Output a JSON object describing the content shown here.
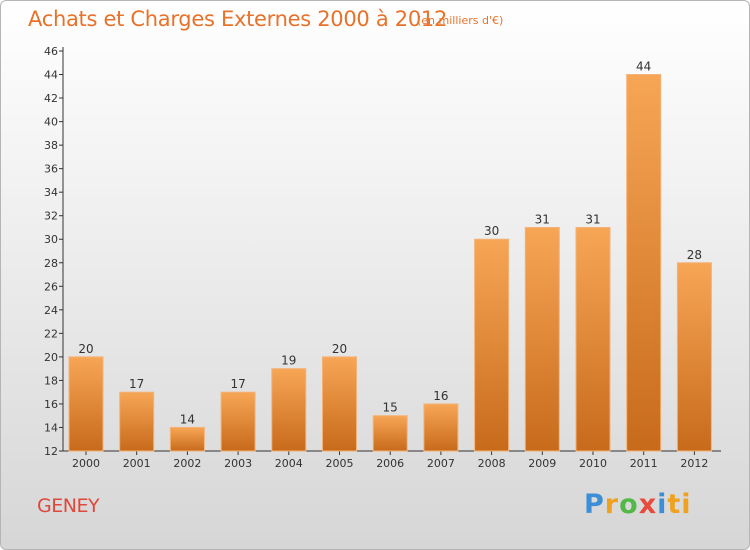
{
  "page": {
    "title": "Achats et Charges Externes 2000 à 2012",
    "unit_note": "(en milliers d'€)",
    "place": "GENEY",
    "brand": "Proxiti",
    "brand_letters": [
      "P",
      "r",
      "o",
      "x",
      "i",
      "ti"
    ]
  },
  "colors": {
    "title": "#e8722a",
    "bar_light": "#f6a352",
    "bar_dark": "#c86c1c",
    "place": "#e0483b"
  },
  "chart_data": {
    "type": "bar",
    "title": "Achats et Charges Externes 2000 à 2012",
    "categories": [
      "2000",
      "2001",
      "2002",
      "2003",
      "2004",
      "2005",
      "2006",
      "2007",
      "2008",
      "2009",
      "2010",
      "2011",
      "2012"
    ],
    "values": [
      20,
      17,
      14,
      17,
      19,
      20,
      15,
      16,
      30,
      31,
      31,
      44,
      28
    ],
    "ylim": [
      12,
      46
    ],
    "yticks": [
      12,
      14,
      16,
      18,
      20,
      22,
      24,
      26,
      28,
      30,
      32,
      34,
      36,
      38,
      40,
      42,
      44,
      46
    ],
    "grid": false,
    "data_labels": true
  }
}
